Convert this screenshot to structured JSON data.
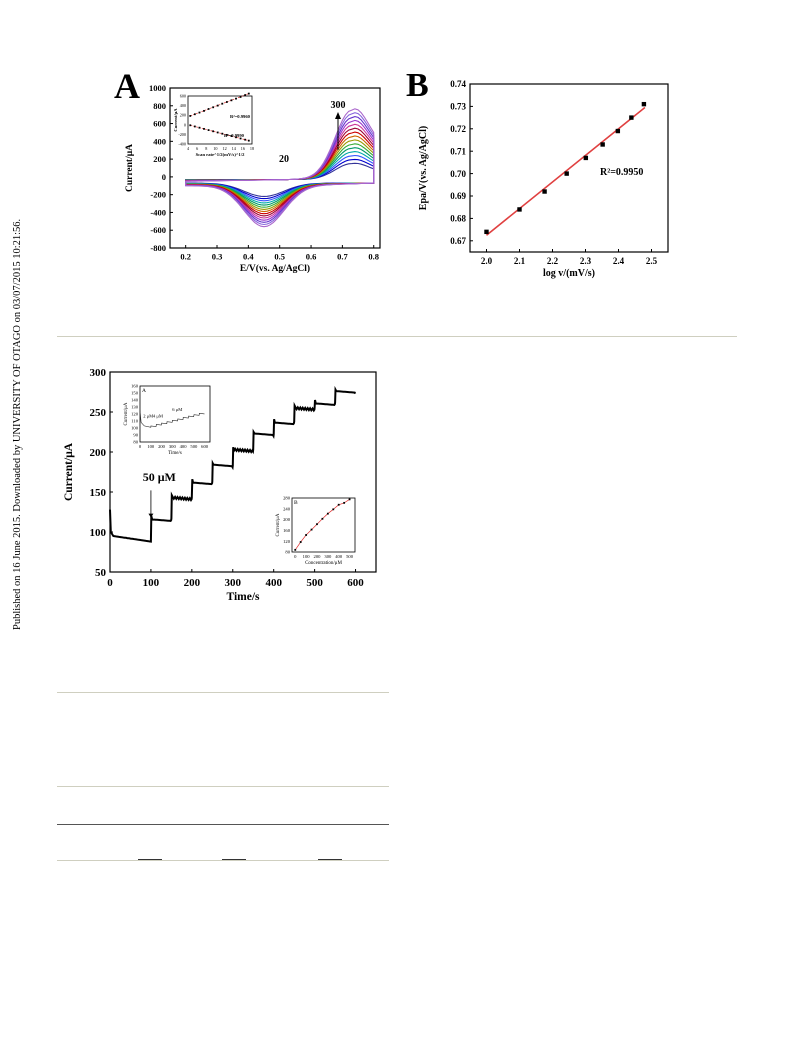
{
  "sidebar": {
    "text": "Published on 16 June 2015. Downloaded by UNIVERSITY OF OTAGO on 03/07/2015 10:21:56."
  },
  "figure_a": {
    "panel_letter": "A",
    "upper_label": "300",
    "lower_label": "20"
  },
  "figure_b": {
    "panel_letter": "B",
    "r2_label": "R²=0.9950"
  },
  "figure_c": {
    "step_label": "50 μM"
  },
  "chart_data": [
    {
      "type": "line",
      "panel": "A",
      "xlabel": "E/V(vs. Ag/AgCl)",
      "ylabel": "Current/μA",
      "xlim": [
        0.15,
        0.82
      ],
      "ylim": [
        -800,
        1000
      ],
      "xticks": [
        0.2,
        0.3,
        0.4,
        0.5,
        0.6,
        0.7,
        0.8
      ],
      "yticks": [
        -800,
        -600,
        -400,
        -200,
        0,
        200,
        400,
        600,
        800,
        1000
      ],
      "scan_rates_range": [
        20,
        300
      ],
      "curves_count": 15,
      "anodic_peak_potential": 0.73,
      "cathodic_peak_potential": 0.45,
      "anodic_peak_current_range": [
        180,
        770
      ],
      "cathodic_peak_current_range": [
        -150,
        -460
      ],
      "colors": [
        "#333399",
        "#0000cc",
        "#3355ff",
        "#00aaaa",
        "#009966",
        "#33aa33",
        "#999900",
        "#cc6600",
        "#cc0000",
        "#990033",
        "#cc3399",
        "#9933cc",
        "#6633cc",
        "#8866dd",
        "#aa66cc"
      ],
      "inset": {
        "xlabel": "Scan rate^1/2(mV/s)^1/2",
        "ylabel": "Current/μA",
        "xlim": [
          4,
          18
        ],
        "ylim": [
          -400,
          600
        ],
        "xticks": [
          4,
          6,
          8,
          10,
          12,
          14,
          16,
          18
        ],
        "yticks": [
          -400,
          -200,
          0,
          200,
          400,
          600
        ],
        "r2_upper": "R²=0.9960",
        "r2_lower": "R²=0.9990",
        "upper_x": [
          4.5,
          5.5,
          6.5,
          7.5,
          8.5,
          9.5,
          10.5,
          11.5,
          12.5,
          13.5,
          14.5,
          15.5,
          16.5,
          17.3
        ],
        "upper_y": [
          185,
          220,
          255,
          290,
          330,
          365,
          400,
          440,
          475,
          510,
          545,
          580,
          620,
          650
        ],
        "lower_x": [
          4.5,
          5.5,
          6.5,
          7.5,
          8.5,
          9.5,
          10.5,
          11.5,
          12.5,
          13.5,
          14.5,
          15.5,
          16.5,
          17.3
        ],
        "lower_y": [
          -10,
          -35,
          -60,
          -85,
          -110,
          -135,
          -160,
          -185,
          -210,
          -235,
          -260,
          -285,
          -310,
          -330
        ]
      }
    },
    {
      "type": "scatter",
      "panel": "B",
      "xlabel": "log v/(mV/s)",
      "ylabel": "Epa/V(vs. Ag/AgCl)",
      "xlim": [
        1.95,
        2.55
      ],
      "ylim": [
        0.665,
        0.74
      ],
      "xticks": [
        2.0,
        2.1,
        2.2,
        2.3,
        2.4,
        2.5
      ],
      "yticks": [
        0.67,
        0.68,
        0.69,
        0.7,
        0.71,
        0.72,
        0.73,
        0.74
      ],
      "x": [
        2.0,
        2.1,
        2.176,
        2.243,
        2.301,
        2.352,
        2.398,
        2.439,
        2.477
      ],
      "y": [
        0.674,
        0.684,
        0.692,
        0.7,
        0.707,
        0.713,
        0.719,
        0.725,
        0.731
      ],
      "fit": {
        "x": [
          2.0,
          2.48
        ],
        "y": [
          0.6725,
          0.7295
        ]
      },
      "r2": "R²=0.9950"
    },
    {
      "type": "line",
      "panel": "amperometric",
      "xlabel": "Time/s",
      "ylabel": "Current/μA",
      "xlim": [
        0,
        650
      ],
      "ylim": [
        50,
        300
      ],
      "xticks": [
        0,
        100,
        200,
        300,
        400,
        500,
        600
      ],
      "yticks": [
        50,
        100,
        150,
        200,
        250,
        300
      ],
      "step_times": [
        100,
        150,
        200,
        250,
        300,
        350,
        400,
        450,
        500,
        550
      ],
      "step_levels": [
        88,
        117,
        143,
        163,
        183,
        203,
        222,
        238,
        255,
        262,
        275
      ],
      "inset_A": {
        "label": "A",
        "xlabel": "Time/s",
        "ylabel": "Current/μA",
        "xlim": [
          0,
          650
        ],
        "ylim": [
          80,
          160
        ],
        "xticks": [
          0,
          100,
          200,
          300,
          400,
          500,
          600
        ],
        "yticks": [
          80,
          90,
          100,
          110,
          120,
          130,
          140,
          150,
          160
        ],
        "annotations": [
          "2 μM",
          "4 μM",
          "6 μM"
        ],
        "step_levels": [
          101,
          103,
          105,
          107,
          109,
          111,
          113,
          115,
          117,
          119,
          121
        ]
      },
      "inset_B": {
        "label": "B",
        "xlabel": "Concentration/μM",
        "ylabel": "Current/μA",
        "xlim": [
          -30,
          550
        ],
        "ylim": [
          80,
          280
        ],
        "xticks": [
          0,
          100,
          200,
          300,
          400,
          500
        ],
        "yticks": [
          80,
          120,
          160,
          200,
          240,
          280
        ],
        "x": [
          0,
          50,
          100,
          150,
          200,
          250,
          300,
          350,
          400,
          450,
          500
        ],
        "y": [
          88,
          117,
          143,
          163,
          183,
          203,
          222,
          238,
          255,
          262,
          275
        ]
      }
    }
  ]
}
